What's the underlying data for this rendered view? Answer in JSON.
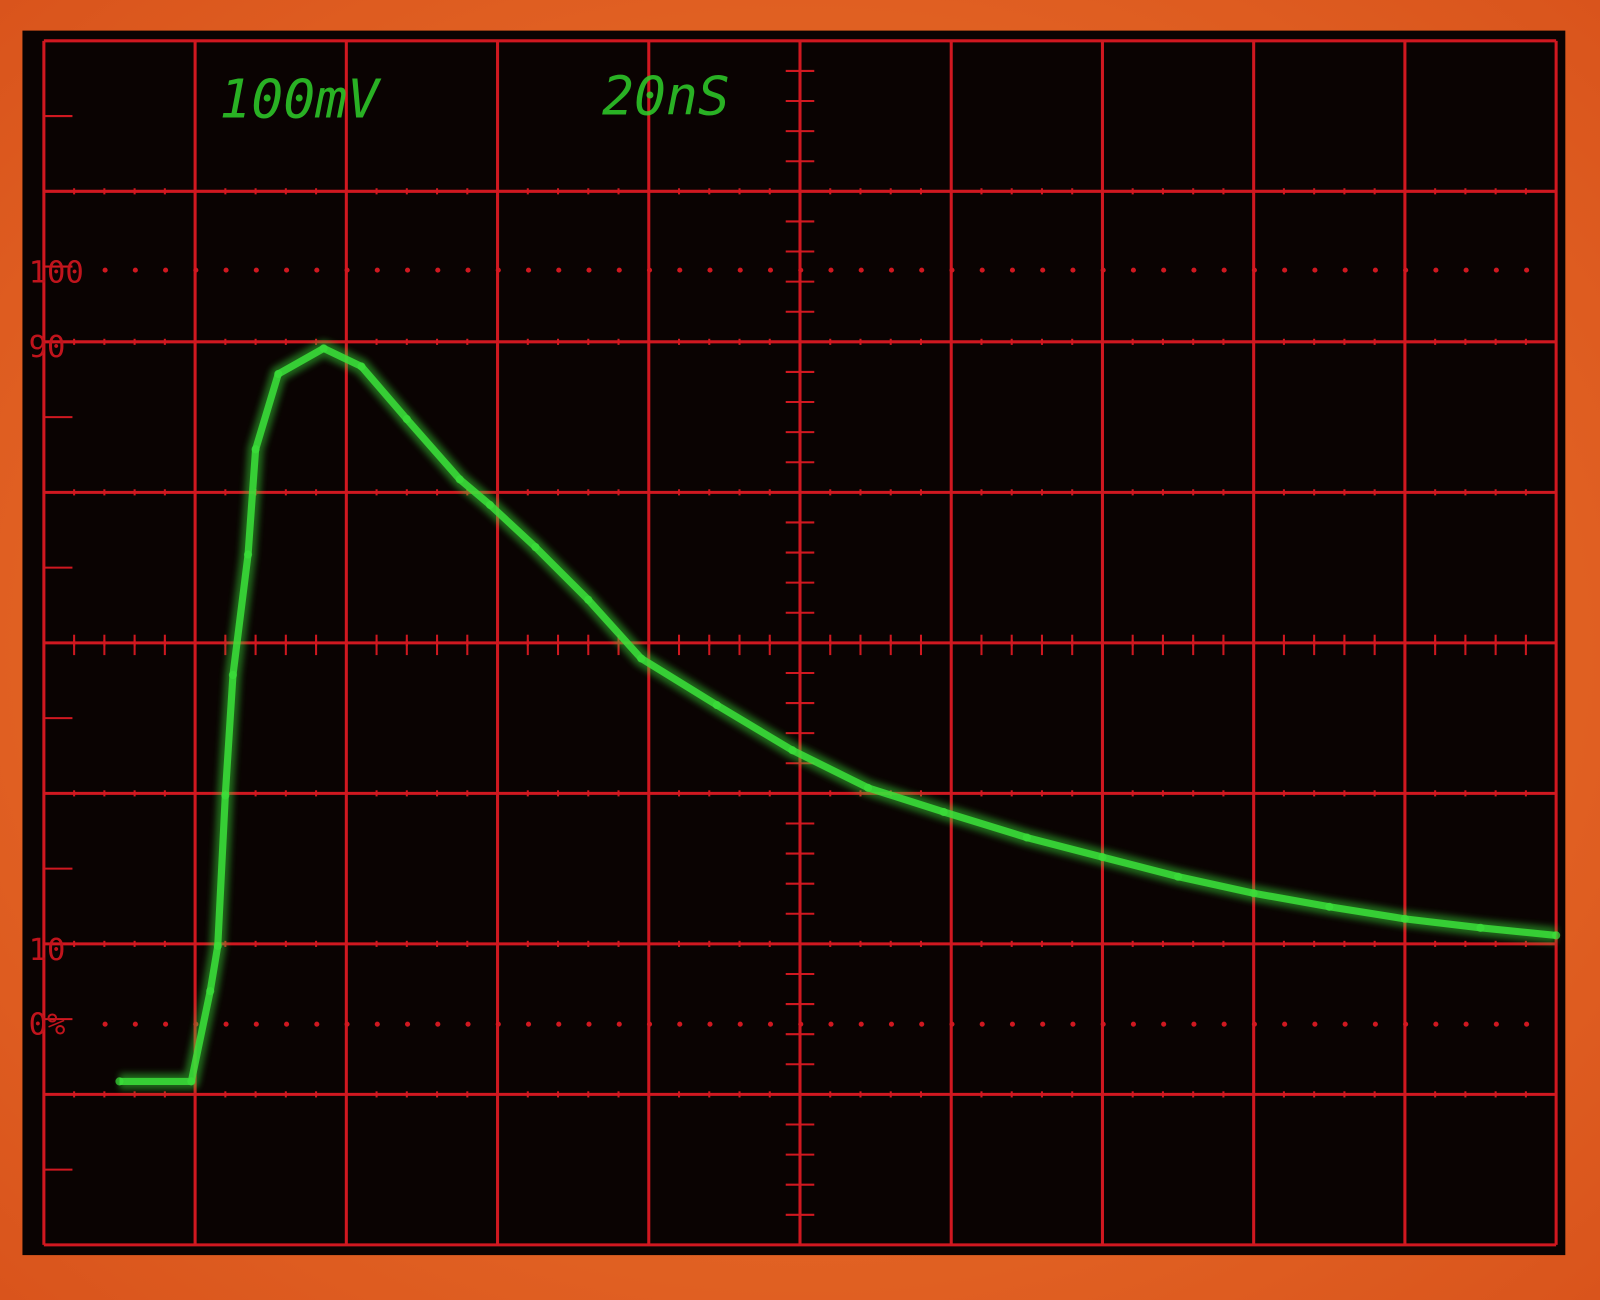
{
  "scope": {
    "volts_per_div": "100mV",
    "time_per_div": "20nS",
    "marker_labels": {
      "p100": "100",
      "p90": "90",
      "p10": "10",
      "p0": "0%"
    },
    "colors": {
      "grid": "#d01820",
      "trace": "#3be03a",
      "screen": "#0a0302",
      "bezel": "#e86a2a"
    }
  },
  "chart_data": {
    "type": "line",
    "title": "",
    "xlabel": "",
    "ylabel": "",
    "x_units": "ns",
    "y_units": "mV",
    "xlim": [
      0,
      200
    ],
    "ylim": [
      -400,
      400
    ],
    "grid": true,
    "grid_divisions": {
      "x": 10,
      "y": 8
    },
    "series": [
      {
        "x": [
          10,
          19.5,
          22,
          23,
          24,
          25,
          27,
          28,
          31,
          37,
          42,
          48,
          55,
          59,
          65,
          72,
          79,
          89,
          99,
          109,
          119,
          130,
          140,
          150,
          160,
          170,
          180,
          190,
          200
        ],
        "y": [
          -290,
          -290,
          -230,
          -200,
          -100,
          -20,
          60,
          130,
          180,
          197,
          185,
          150,
          110,
          93,
          65,
          30,
          -9,
          -40,
          -70,
          -95,
          -111,
          -128,
          -141,
          -154,
          -165,
          -174,
          -182,
          -188,
          -193
        ]
      }
    ]
  }
}
